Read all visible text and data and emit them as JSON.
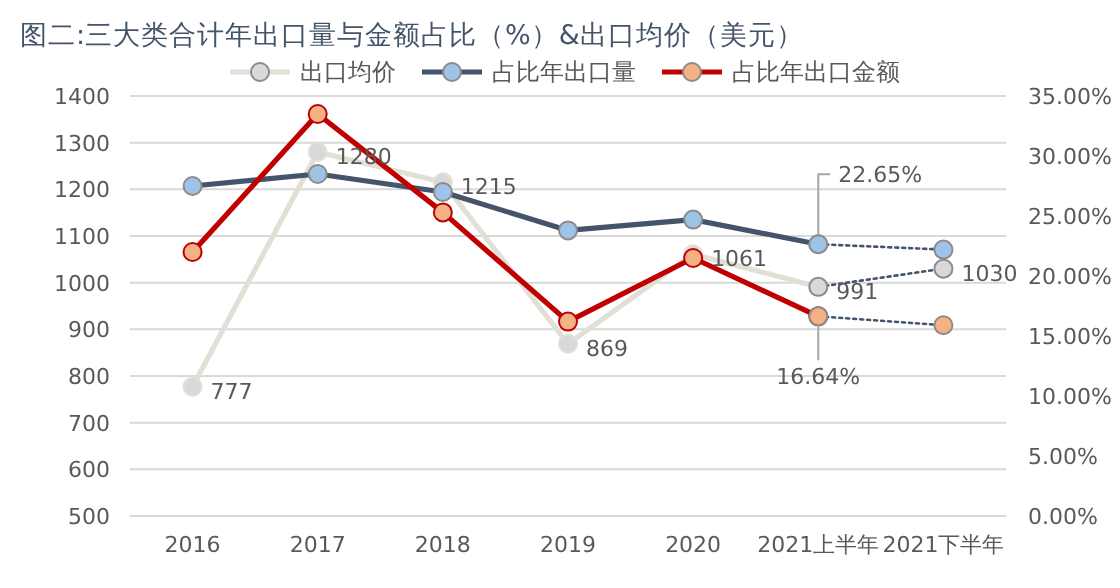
{
  "chart_data": {
    "type": "line",
    "title": "图二:三大类合计年出口量与金额占比（%）&出口均价（美元）",
    "categories": [
      "2016",
      "2017",
      "2018",
      "2019",
      "2020",
      "2021上半年",
      "2021下半年"
    ],
    "series": [
      {
        "name": "出口均价",
        "color": "#e2e0d6",
        "colors": [
          "#d9d9d9",
          "#d9d9d9",
          "#d9d9d9",
          "#d9d9d9",
          "#d9d9d9",
          "#d9d9d9",
          null
        ],
        "values": [
          777,
          1280,
          1215,
          869,
          1061,
          991,
          null
        ],
        "value_labels": [
          "777",
          "1280",
          "1215",
          "869",
          "1061",
          "991",
          null
        ]
      },
      {
        "name": "占比年出口量",
        "color": "#44546a",
        "colors": [
          "#9dc3e6",
          "#9dc3e6",
          "#9dc3e6",
          "#9dc3e6",
          "#9dc3e6",
          "#9dc3e6",
          null
        ],
        "axis": "y2",
        "values": [
          27.5,
          28.5,
          27.0,
          23.8,
          24.7,
          22.65,
          null
        ],
        "value_labels": [
          null,
          null,
          null,
          null,
          null,
          "22.65%",
          null
        ]
      },
      {
        "name": "占比年出口金额",
        "color": "#c00000",
        "colors": [
          "#f4b183",
          "#f4b183",
          "#f4b183",
          "#f4b183",
          "#f4b183",
          "#f4b183",
          null
        ],
        "axis": "y2",
        "values": [
          22.0,
          33.5,
          25.3,
          16.2,
          21.5,
          16.64,
          null
        ],
        "value_labels": [
          null,
          null,
          null,
          null,
          null,
          "16.64%",
          null
        ]
      },
      {
        "color": "#44546a",
        "line_style": "dotted",
        "colors": [
          null,
          null,
          null,
          null,
          null,
          "#d9d9d9",
          "#d9d9d9"
        ],
        "values": [
          null,
          null,
          null,
          null,
          null,
          991,
          1030
        ],
        "value_labels": [
          null,
          null,
          null,
          null,
          null,
          null,
          "1030"
        ]
      },
      {
        "color": "#44546a",
        "line_style": "dotted",
        "axis": "y2",
        "colors": [
          null,
          null,
          null,
          null,
          null,
          "#9dc3e6",
          "#9dc3e6"
        ],
        "values": [
          null,
          null,
          null,
          null,
          null,
          22.65,
          22.2
        ]
      },
      {
        "color": "#44546a",
        "line_style": "dotted",
        "axis": "y2",
        "colors": [
          null,
          null,
          null,
          null,
          null,
          "#f4b183",
          "#f4b183"
        ],
        "values": [
          null,
          null,
          null,
          null,
          null,
          16.64,
          15.9
        ]
      }
    ],
    "ylim": [
      500,
      1400
    ],
    "yticks": [
      500,
      600,
      700,
      800,
      900,
      1000,
      1100,
      1200,
      1300,
      1400
    ],
    "y2lim": [
      0,
      35
    ],
    "y2ticks": [
      {
        "value": 0,
        "label": "0.00%"
      },
      {
        "value": 5,
        "label": "5.00%"
      },
      {
        "value": 10,
        "label": "10.00%"
      },
      {
        "value": 15,
        "label": "15.00%"
      },
      {
        "value": 20,
        "label": "20.00%"
      },
      {
        "value": 25,
        "label": "25.00%"
      },
      {
        "value": 30,
        "label": "30.00%"
      },
      {
        "value": 35,
        "label": "35.00%"
      }
    ],
    "grid": "y",
    "legend": "top",
    "marker": "circle",
    "line_style": "solid"
  }
}
